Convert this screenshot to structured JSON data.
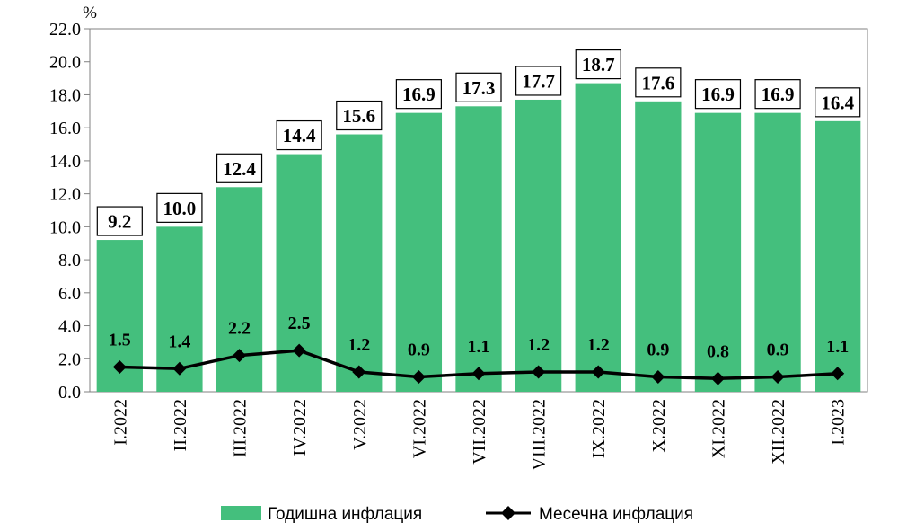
{
  "chart_data": {
    "type": "bar",
    "unit_label": "%",
    "categories": [
      "I.2022",
      "II.2022",
      "III.2022",
      "IV.2022",
      "V.2022",
      "VI.2022",
      "VII.2022",
      "VIII.2022",
      "IX.2022",
      "X.2022",
      "XI.2022",
      "XII.2022",
      "I.2023"
    ],
    "series": [
      {
        "name": "Годишна инфлация",
        "type": "bar",
        "color": "#44bf7d",
        "values": [
          9.2,
          10.0,
          12.4,
          14.4,
          15.6,
          16.9,
          17.3,
          17.7,
          18.7,
          17.6,
          16.9,
          16.9,
          16.4
        ],
        "labels": [
          "9.2",
          "10.0",
          "12.4",
          "14.4",
          "15.6",
          "16.9",
          "17.3",
          "17.7",
          "18.7",
          "17.6",
          "16.9",
          "16.9",
          "16.4"
        ]
      },
      {
        "name": "Месечна инфлация",
        "type": "line",
        "color": "#000000",
        "marker": "diamond",
        "values": [
          1.5,
          1.4,
          2.2,
          2.5,
          1.2,
          0.9,
          1.1,
          1.2,
          1.2,
          0.9,
          0.8,
          0.9,
          1.1
        ],
        "labels": [
          "1.5",
          "1.4",
          "2.2",
          "2.5",
          "1.2",
          "0.9",
          "1.1",
          "1.2",
          "1.2",
          "0.9",
          "0.8",
          "0.9",
          "1.1"
        ]
      }
    ],
    "ylim": [
      0,
      22
    ],
    "yticks": [
      "0.0",
      "2.0",
      "4.0",
      "6.0",
      "8.0",
      "10.0",
      "12.0",
      "14.0",
      "16.0",
      "18.0",
      "20.0",
      "22.0"
    ],
    "grid": false,
    "legend_position": "bottom"
  }
}
